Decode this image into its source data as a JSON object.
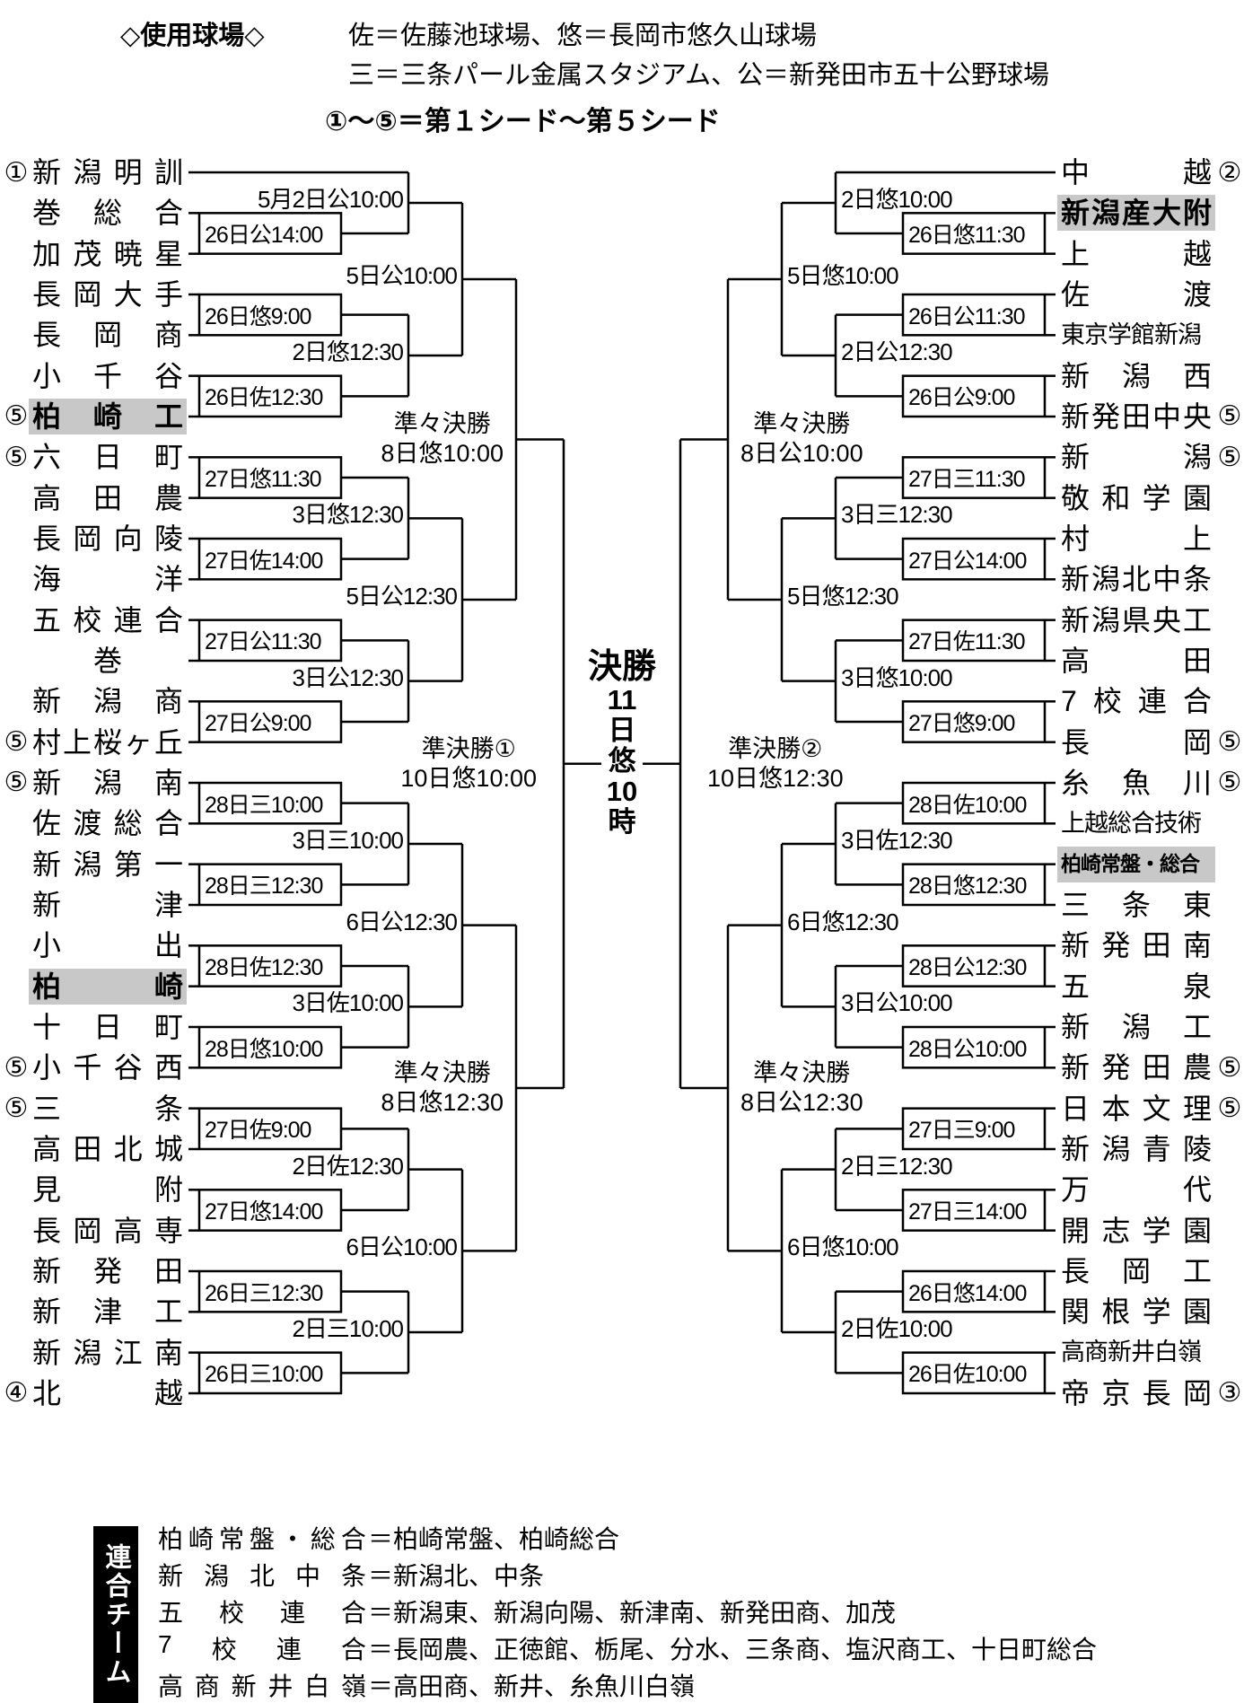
{
  "header": {
    "venues_label": "◇使用球場◇",
    "venues_line1": "佐＝佐藤池球場、悠＝長岡市悠久山球場",
    "venues_line2": "三＝三条パール金属スタジアム、公＝新発田市五十公野球場",
    "seed_note": "①～⑤＝第１シード～第５シード"
  },
  "final": {
    "title": "決勝",
    "schedule_chars": [
      "11",
      "日",
      "悠",
      "10",
      "時"
    ]
  },
  "bracket": {
    "left": {
      "teams": [
        {
          "n": "新潟明訓",
          "s": "①"
        },
        {
          "n": "巻総合"
        },
        {
          "n": "加茂暁星"
        },
        {
          "n": "長岡大手"
        },
        {
          "n": "長岡商"
        },
        {
          "n": "小千谷"
        },
        {
          "n": "柏崎工",
          "s": "⑤",
          "h": true
        },
        {
          "n": "六日町",
          "s": "⑤"
        },
        {
          "n": "高田農"
        },
        {
          "n": "長岡向陵"
        },
        {
          "n": "海洋"
        },
        {
          "n": "五校連合"
        },
        {
          "n": "巻"
        },
        {
          "n": "新潟商"
        },
        {
          "n": "村上桜ヶ丘",
          "s": "⑤"
        },
        {
          "n": "新潟南",
          "s": "⑤"
        },
        {
          "n": "佐渡総合"
        },
        {
          "n": "新潟第一"
        },
        {
          "n": "新津"
        },
        {
          "n": "小出"
        },
        {
          "n": "柏崎",
          "h": true
        },
        {
          "n": "十日町"
        },
        {
          "n": "小千谷西",
          "s": "⑤"
        },
        {
          "n": "三条",
          "s": "⑤"
        },
        {
          "n": "高田北城"
        },
        {
          "n": "見附"
        },
        {
          "n": "長岡高専"
        },
        {
          "n": "新発田"
        },
        {
          "n": "新津工"
        },
        {
          "n": "新潟江南"
        },
        {
          "n": "北越",
          "s": "④"
        }
      ],
      "matches": [
        {
          "r": 1,
          "t": "s1",
          "b": "s2",
          "l": "26日公14:00"
        },
        {
          "r": 1,
          "t": "s3",
          "b": "s4",
          "l": "26日悠9:00"
        },
        {
          "r": 1,
          "t": "s5",
          "b": "s6",
          "l": "26日佐12:30"
        },
        {
          "r": 1,
          "t": "s7",
          "b": "s8",
          "l": "27日悠11:30"
        },
        {
          "r": 1,
          "t": "s9",
          "b": "s10",
          "l": "27日佐14:00"
        },
        {
          "r": 1,
          "t": "s11",
          "b": "s12",
          "l": "27日公11:30"
        },
        {
          "r": 1,
          "t": "s13",
          "b": "s14",
          "l": "27日公9:00"
        },
        {
          "r": 1,
          "t": "s15",
          "b": "s16",
          "l": "28日三10:00"
        },
        {
          "r": 1,
          "t": "s17",
          "b": "s18",
          "l": "28日三12:30"
        },
        {
          "r": 1,
          "t": "s19",
          "b": "s20",
          "l": "28日佐12:30"
        },
        {
          "r": 1,
          "t": "s21",
          "b": "s22",
          "l": "28日悠10:00"
        },
        {
          "r": 1,
          "t": "s23",
          "b": "s24",
          "l": "27日佐9:00"
        },
        {
          "r": 1,
          "t": "s25",
          "b": "s26",
          "l": "27日悠14:00"
        },
        {
          "r": 1,
          "t": "s27",
          "b": "s28",
          "l": "26日三12:30"
        },
        {
          "r": 1,
          "t": "s29",
          "b": "s30",
          "l": "26日三10:00"
        },
        {
          "r": 2,
          "t": "s0",
          "b": "m0",
          "l": "5月2日公10:00"
        },
        {
          "r": 2,
          "t": "m1",
          "b": "m2",
          "l": "2日悠12:30"
        },
        {
          "r": 2,
          "t": "m3",
          "b": "m4",
          "l": "3日悠12:30"
        },
        {
          "r": 2,
          "t": "m5",
          "b": "m6",
          "l": "3日公12:30"
        },
        {
          "r": 2,
          "t": "m7",
          "b": "m8",
          "l": "3日三10:00"
        },
        {
          "r": 2,
          "t": "m9",
          "b": "m10",
          "l": "3日佐10:00"
        },
        {
          "r": 2,
          "t": "m11",
          "b": "m12",
          "l": "2日佐12:30"
        },
        {
          "r": 2,
          "t": "m13",
          "b": "m14",
          "l": "2日三10:00"
        },
        {
          "r": 3,
          "t": "m15",
          "b": "m16",
          "l": "5日公10:00"
        },
        {
          "r": 3,
          "t": "m17",
          "b": "m18",
          "l": "5日公12:30"
        },
        {
          "r": 3,
          "t": "m19",
          "b": "m20",
          "l": "6日公12:30"
        },
        {
          "r": 3,
          "t": "m21",
          "b": "m22",
          "l": "6日公10:00"
        },
        {
          "r": 4,
          "t": "m23",
          "b": "m24",
          "l": "準々決勝",
          "l2": "8日悠10:00"
        },
        {
          "r": 4,
          "t": "m25",
          "b": "m26",
          "l": "準々決勝",
          "l2": "8日悠12:30"
        },
        {
          "r": 5,
          "t": "m27",
          "b": "m28",
          "l": "準決勝①",
          "l2": "10日悠10:00"
        }
      ]
    },
    "right": {
      "teams": [
        {
          "n": "中越",
          "s": "②"
        },
        {
          "n": "新潟産大附",
          "h": true
        },
        {
          "n": "上越"
        },
        {
          "n": "佐渡"
        },
        {
          "n": "東京学館新潟"
        },
        {
          "n": "新潟西"
        },
        {
          "n": "新発田中央",
          "s": "⑤"
        },
        {
          "n": "新潟",
          "s": "⑤"
        },
        {
          "n": "敬和学園"
        },
        {
          "n": "村上"
        },
        {
          "n": "新潟北中条"
        },
        {
          "n": "新潟県央工"
        },
        {
          "n": "高田"
        },
        {
          "n": "7校連合"
        },
        {
          "n": "長岡",
          "s": "⑤"
        },
        {
          "n": "糸魚川",
          "s": "⑤"
        },
        {
          "n": "上越総合技術"
        },
        {
          "n": "柏崎常盤・総合",
          "h": true
        },
        {
          "n": "三条東"
        },
        {
          "n": "新発田南"
        },
        {
          "n": "五泉"
        },
        {
          "n": "新潟工"
        },
        {
          "n": "新発田農",
          "s": "⑤"
        },
        {
          "n": "日本文理",
          "s": "⑤"
        },
        {
          "n": "新潟青陵"
        },
        {
          "n": "万代"
        },
        {
          "n": "開志学園"
        },
        {
          "n": "長岡工"
        },
        {
          "n": "関根学園"
        },
        {
          "n": "高商新井白嶺"
        },
        {
          "n": "帝京長岡",
          "s": "③"
        }
      ],
      "matches": [
        {
          "r": 1,
          "t": "s1",
          "b": "s2",
          "l": "26日悠11:30"
        },
        {
          "r": 1,
          "t": "s3",
          "b": "s4",
          "l": "26日公11:30"
        },
        {
          "r": 1,
          "t": "s5",
          "b": "s6",
          "l": "26日公9:00"
        },
        {
          "r": 1,
          "t": "s7",
          "b": "s8",
          "l": "27日三11:30"
        },
        {
          "r": 1,
          "t": "s9",
          "b": "s10",
          "l": "27日公14:00"
        },
        {
          "r": 1,
          "t": "s11",
          "b": "s12",
          "l": "27日佐11:30"
        },
        {
          "r": 1,
          "t": "s13",
          "b": "s14",
          "l": "27日悠9:00"
        },
        {
          "r": 1,
          "t": "s15",
          "b": "s16",
          "l": "28日佐10:00"
        },
        {
          "r": 1,
          "t": "s17",
          "b": "s18",
          "l": "28日悠12:30"
        },
        {
          "r": 1,
          "t": "s19",
          "b": "s20",
          "l": "28日公12:30"
        },
        {
          "r": 1,
          "t": "s21",
          "b": "s22",
          "l": "28日公10:00"
        },
        {
          "r": 1,
          "t": "s23",
          "b": "s24",
          "l": "27日三9:00"
        },
        {
          "r": 1,
          "t": "s25",
          "b": "s26",
          "l": "27日三14:00"
        },
        {
          "r": 1,
          "t": "s27",
          "b": "s28",
          "l": "26日悠14:00"
        },
        {
          "r": 1,
          "t": "s29",
          "b": "s30",
          "l": "26日佐10:00"
        },
        {
          "r": 2,
          "t": "s0",
          "b": "m0",
          "l": "2日悠10:00"
        },
        {
          "r": 2,
          "t": "m1",
          "b": "m2",
          "l": "2日公12:30"
        },
        {
          "r": 2,
          "t": "m3",
          "b": "m4",
          "l": "3日三12:30"
        },
        {
          "r": 2,
          "t": "m5",
          "b": "m6",
          "l": "3日悠10:00"
        },
        {
          "r": 2,
          "t": "m7",
          "b": "m8",
          "l": "3日佐12:30"
        },
        {
          "r": 2,
          "t": "m9",
          "b": "m10",
          "l": "3日公10:00"
        },
        {
          "r": 2,
          "t": "m11",
          "b": "m12",
          "l": "2日三12:30"
        },
        {
          "r": 2,
          "t": "m13",
          "b": "m14",
          "l": "2日佐10:00"
        },
        {
          "r": 3,
          "t": "m15",
          "b": "m16",
          "l": "5日悠10:00"
        },
        {
          "r": 3,
          "t": "m17",
          "b": "m18",
          "l": "5日悠12:30"
        },
        {
          "r": 3,
          "t": "m19",
          "b": "m20",
          "l": "6日悠12:30"
        },
        {
          "r": 3,
          "t": "m21",
          "b": "m22",
          "l": "6日悠10:00"
        },
        {
          "r": 4,
          "t": "m23",
          "b": "m24",
          "l": "準々決勝",
          "l2": "8日公10:00"
        },
        {
          "r": 4,
          "t": "m25",
          "b": "m26",
          "l": "準々決勝",
          "l2": "8日公12:30"
        },
        {
          "r": 5,
          "t": "m27",
          "b": "m28",
          "l": "準決勝②",
          "l2": "10日悠12:30"
        }
      ]
    }
  },
  "legend": {
    "label": "連合チーム",
    "separator": "＝",
    "rows": [
      {
        "name": "柏崎常盤・総合",
        "members": "柏崎常盤、柏崎総合"
      },
      {
        "name": "新潟北中条",
        "members": "新潟北、中条"
      },
      {
        "name": "五校連合",
        "members": "新潟東、新潟向陽、新津南、新発田商、加茂"
      },
      {
        "name": "7校連合",
        "members": "長岡農、正徳館、栃尾、分水、三条商、塩沢商工、十日町総合"
      },
      {
        "name": "高商新井白嶺",
        "members": "高田商、新井、糸魚川白嶺"
      }
    ]
  },
  "colors": {
    "highlight": "#c8c8c8",
    "line": "#000000",
    "legend_bg": "#000000"
  }
}
